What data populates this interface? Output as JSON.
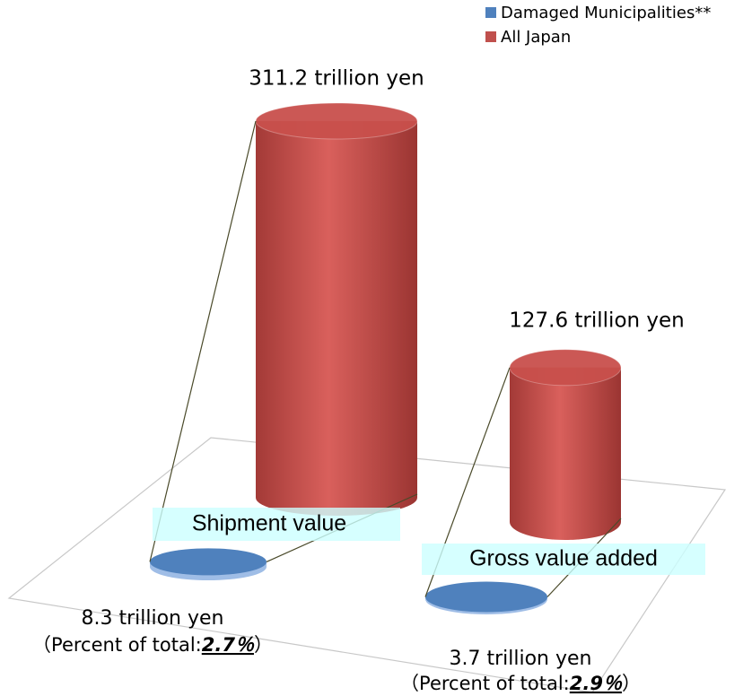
{
  "chart_data": {
    "type": "bar",
    "categories": [
      "Shipment value",
      "Gross value added"
    ],
    "series": [
      {
        "name": "Damaged Municipalities**",
        "color": "#4f81bd",
        "values": [
          8.3,
          3.7
        ],
        "value_labels": [
          "8.3 trillion yen",
          "3.7 trillion yen"
        ]
      },
      {
        "name": "All Japan",
        "color": "#c0504d",
        "values": [
          311.2,
          127.6
        ],
        "value_labels": [
          "311.2 trillion yen",
          "127.6 trillion yen"
        ]
      }
    ],
    "annotations": [
      {
        "open": "（Percent of total:",
        "emphasis": "2.7％",
        "close": "）"
      },
      {
        "open": "（Percent of total:",
        "emphasis": "2.9％",
        "close": "）"
      }
    ]
  }
}
